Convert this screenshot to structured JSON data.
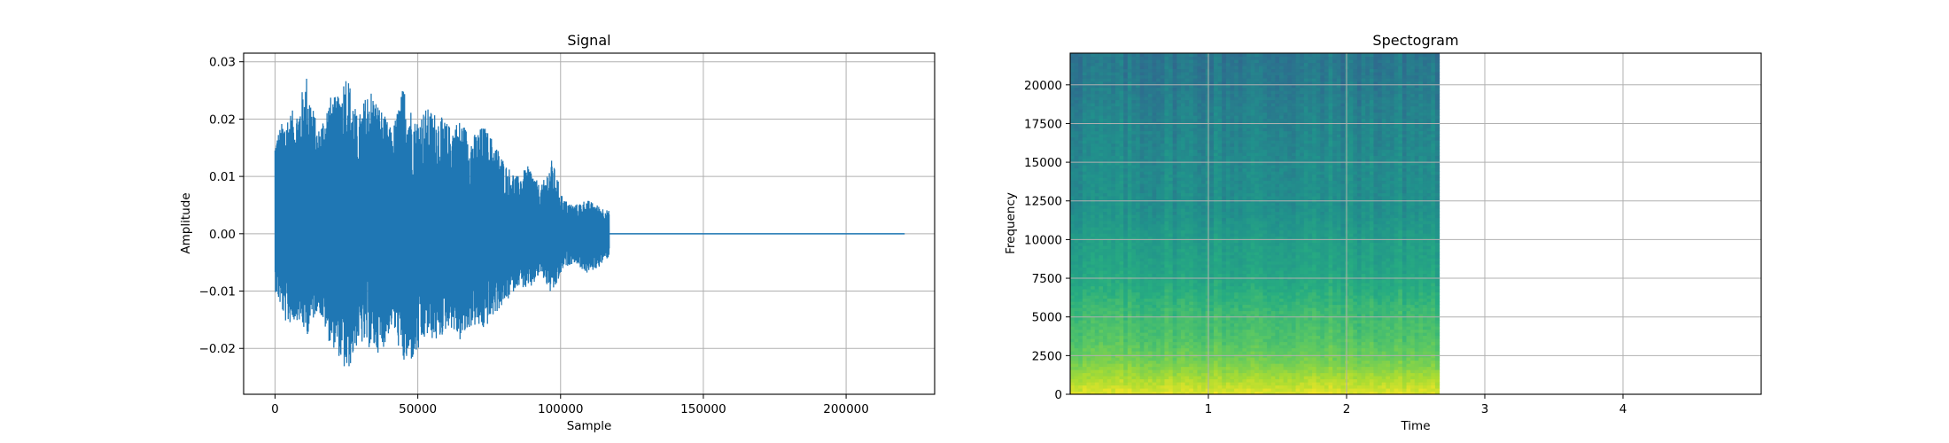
{
  "chart_data": [
    {
      "type": "line",
      "title": "Signal",
      "xlabel": "Sample",
      "ylabel": "Amplitude",
      "xlim": [
        -11000,
        231000
      ],
      "ylim": [
        -0.028,
        0.0315
      ],
      "x_ticks": [
        0,
        50000,
        100000,
        150000,
        200000
      ],
      "x_tick_labels": [
        "0",
        "50000",
        "100000",
        "150000",
        "200000"
      ],
      "y_ticks": [
        -0.02,
        -0.01,
        0.0,
        0.01,
        0.02,
        0.03
      ],
      "y_tick_labels": [
        "−0.02",
        "−0.01",
        "0.00",
        "0.01",
        "0.02",
        "0.03"
      ],
      "grid": true,
      "series": [
        {
          "color": "#1f77b4",
          "sample_count": 220500,
          "signal_end_sample": 117000,
          "envelope": [
            {
              "x": 0,
              "max": 0.017,
              "min": -0.01
            },
            {
              "x": 4000,
              "max": 0.021,
              "min": -0.016
            },
            {
              "x": 8000,
              "max": 0.022,
              "min": -0.015
            },
            {
              "x": 11000,
              "max": 0.028,
              "min": -0.018
            },
            {
              "x": 15000,
              "max": 0.018,
              "min": -0.013
            },
            {
              "x": 19000,
              "max": 0.024,
              "min": -0.019
            },
            {
              "x": 22000,
              "max": 0.024,
              "min": -0.021
            },
            {
              "x": 25000,
              "max": 0.029,
              "min": -0.025
            },
            {
              "x": 29000,
              "max": 0.02,
              "min": -0.019
            },
            {
              "x": 33000,
              "max": 0.026,
              "min": -0.02
            },
            {
              "x": 37000,
              "max": 0.022,
              "min": -0.021
            },
            {
              "x": 41000,
              "max": 0.018,
              "min": -0.016
            },
            {
              "x": 45000,
              "max": 0.026,
              "min": -0.023
            },
            {
              "x": 49000,
              "max": 0.02,
              "min": -0.022
            },
            {
              "x": 53000,
              "max": 0.022,
              "min": -0.018
            },
            {
              "x": 57000,
              "max": 0.021,
              "min": -0.019
            },
            {
              "x": 61000,
              "max": 0.019,
              "min": -0.016
            },
            {
              "x": 65000,
              "max": 0.02,
              "min": -0.019
            },
            {
              "x": 69000,
              "max": 0.017,
              "min": -0.016
            },
            {
              "x": 73000,
              "max": 0.019,
              "min": -0.017
            },
            {
              "x": 77000,
              "max": 0.016,
              "min": -0.014
            },
            {
              "x": 81000,
              "max": 0.012,
              "min": -0.012
            },
            {
              "x": 85000,
              "max": 0.01,
              "min": -0.009
            },
            {
              "x": 89000,
              "max": 0.012,
              "min": -0.01
            },
            {
              "x": 93000,
              "max": 0.008,
              "min": -0.007
            },
            {
              "x": 97000,
              "max": 0.013,
              "min": -0.011
            },
            {
              "x": 101000,
              "max": 0.006,
              "min": -0.006
            },
            {
              "x": 105000,
              "max": 0.005,
              "min": -0.005
            },
            {
              "x": 109000,
              "max": 0.006,
              "min": -0.007
            },
            {
              "x": 113000,
              "max": 0.005,
              "min": -0.006
            },
            {
              "x": 117000,
              "max": 0.004,
              "min": -0.004
            }
          ]
        }
      ]
    },
    {
      "type": "heatmap",
      "title": "Spectogram",
      "xlabel": "Time",
      "ylabel": "Frequency",
      "xlim": [
        0,
        5.0
      ],
      "ylim": [
        0,
        22050
      ],
      "x_ticks": [
        1,
        2,
        3,
        4
      ],
      "x_tick_labels": [
        "1",
        "2",
        "3",
        "4"
      ],
      "y_ticks": [
        0,
        2500,
        5000,
        7500,
        10000,
        12500,
        15000,
        17500,
        20000
      ],
      "y_tick_labels": [
        "0",
        "2500",
        "5000",
        "7500",
        "10000",
        "12500",
        "15000",
        "17500",
        "20000"
      ],
      "grid": true,
      "colormap": "viridis",
      "data_time_range": [
        0,
        2.67
      ],
      "frequency_profile": [
        {
          "freq": 0,
          "level": 0.96
        },
        {
          "freq": 800,
          "level": 0.9
        },
        {
          "freq": 2000,
          "level": 0.8
        },
        {
          "freq": 3500,
          "level": 0.73
        },
        {
          "freq": 5500,
          "level": 0.68
        },
        {
          "freq": 7000,
          "level": 0.62
        },
        {
          "freq": 8500,
          "level": 0.58
        },
        {
          "freq": 10000,
          "level": 0.56
        },
        {
          "freq": 12000,
          "level": 0.5
        },
        {
          "freq": 15000,
          "level": 0.48
        },
        {
          "freq": 18000,
          "level": 0.45
        },
        {
          "freq": 20000,
          "level": 0.42
        },
        {
          "freq": 22050,
          "level": 0.4
        }
      ]
    }
  ]
}
